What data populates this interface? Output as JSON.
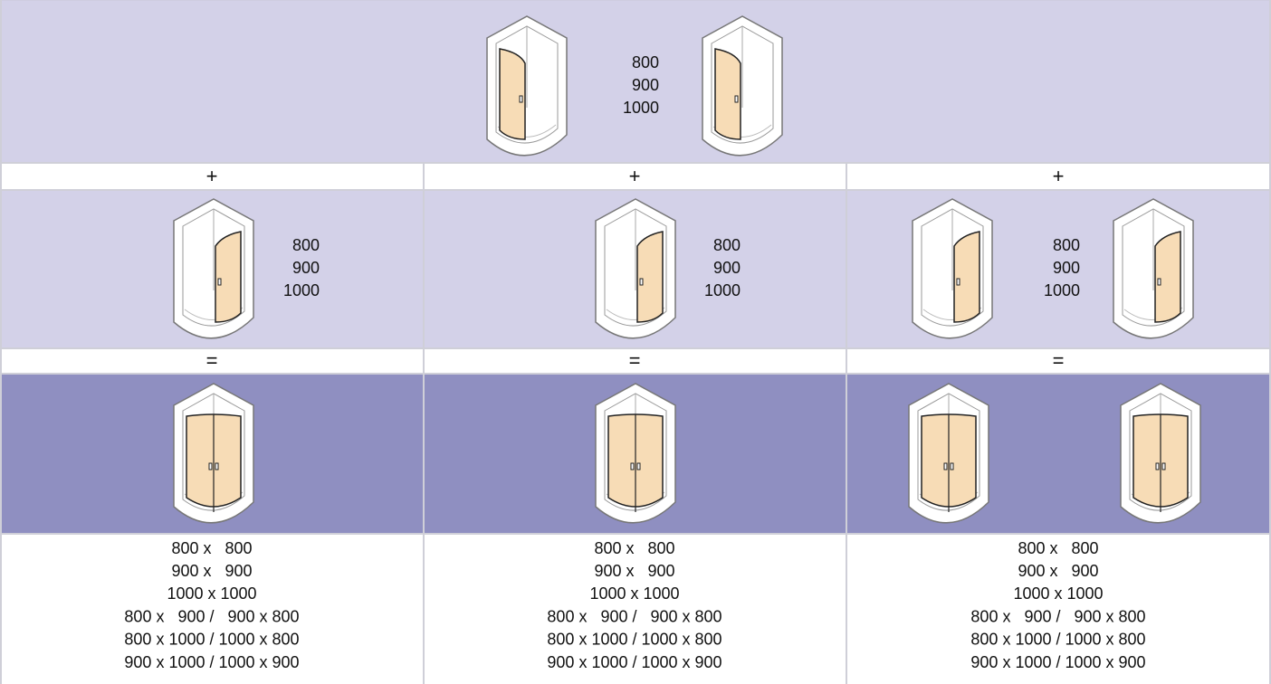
{
  "top": {
    "sizes": [
      "800",
      "900",
      "1000"
    ]
  },
  "columns": [
    {
      "plus": "+",
      "sizes": [
        "800",
        "900",
        "1000"
      ],
      "equals": "=",
      "results": [
        "800 x   800",
        "900 x   900",
        "1000 x 1000",
        "800 x   900 /   900 x 800",
        "800 x 1000 / 1000 x 800",
        "900 x 1000 / 1000 x 900"
      ]
    },
    {
      "plus": "+",
      "sizes": [
        "800",
        "900",
        "1000"
      ],
      "equals": "=",
      "results": [
        "800 x   800",
        "900 x   900",
        "1000 x 1000",
        "800 x   900 /   900 x 800",
        "800 x 1000 / 1000 x 800",
        "900 x 1000 / 1000 x 900"
      ]
    },
    {
      "plus": "+",
      "sizes": [
        "800",
        "900",
        "1000"
      ],
      "equals": "=",
      "results": [
        "800 x   800",
        "900 x   900",
        "1000 x 1000",
        "800 x   900 /   900 x 800",
        "800 x 1000 / 1000 x 800",
        "900 x 1000 / 1000 x 900"
      ]
    }
  ]
}
